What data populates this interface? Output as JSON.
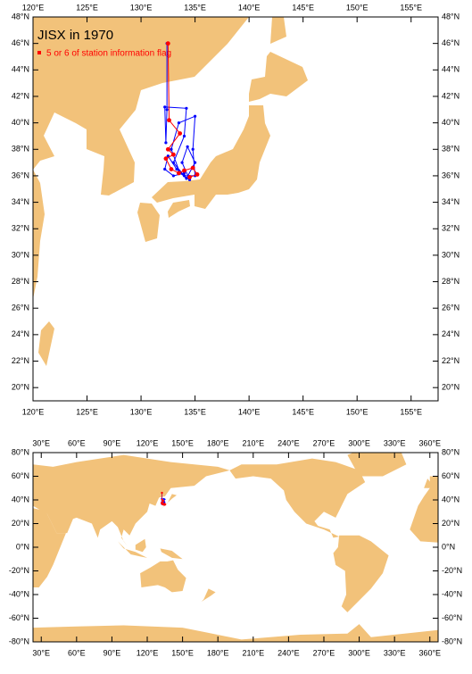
{
  "chart_data": [
    {
      "type": "map",
      "title": "JISX in 1970",
      "xlim": [
        120,
        157.5
      ],
      "ylim": [
        19,
        48
      ],
      "xticks": [
        {
          "value": 120,
          "label": "120°E"
        },
        {
          "value": 125,
          "label": "125°E"
        },
        {
          "value": 130,
          "label": "130°E"
        },
        {
          "value": 135,
          "label": "135°E"
        },
        {
          "value": 140,
          "label": "140°E"
        },
        {
          "value": 145,
          "label": "145°E"
        },
        {
          "value": 150,
          "label": "150°E"
        },
        {
          "value": 155,
          "label": "155°E"
        }
      ],
      "yticks": [
        {
          "value": 20,
          "label": "20°N"
        },
        {
          "value": 22,
          "label": "22°N"
        },
        {
          "value": 24,
          "label": "24°N"
        },
        {
          "value": 26,
          "label": "26°N"
        },
        {
          "value": 28,
          "label": "28°N"
        },
        {
          "value": 30,
          "label": "30°N"
        },
        {
          "value": 32,
          "label": "32°N"
        },
        {
          "value": 34,
          "label": "34°N"
        },
        {
          "value": 36,
          "label": "36°N"
        },
        {
          "value": 38,
          "label": "38°N"
        },
        {
          "value": 40,
          "label": "40°N"
        },
        {
          "value": 42,
          "label": "42°N"
        },
        {
          "value": 44,
          "label": "44°N"
        },
        {
          "value": 46,
          "label": "46°N"
        },
        {
          "value": 48,
          "label": "48°N"
        }
      ],
      "series": [
        {
          "color": "#0000ff",
          "x": [
            132.4,
            132.4,
            132.3,
            132.2,
            134.2,
            134,
            133,
            134,
            135,
            134.8,
            135,
            133.5,
            132.8,
            133.6,
            134.5,
            133.8,
            134.3,
            135,
            134.2,
            133.3,
            132.5,
            132.2,
            133,
            134
          ],
          "values": [
            46,
            41,
            38.5,
            41.2,
            41.1,
            39,
            37,
            36,
            36,
            38,
            40.5,
            40,
            38,
            36.2,
            35.7,
            37,
            38.2,
            37,
            35.8,
            36.5,
            37.5,
            36.5,
            36,
            36.2
          ]
        },
        {
          "name": "5 or 6 of station information flag",
          "color": "#ff0000",
          "x": [
            132.5,
            132.6,
            133.6,
            132.5,
            133,
            132.3,
            132.8,
            133.5,
            134,
            134.8,
            135.2,
            134.5
          ],
          "values": [
            46,
            40.2,
            39.2,
            38,
            37.6,
            37.3,
            36.5,
            36.2,
            36.4,
            36.6,
            36.1,
            35.9
          ]
        }
      ]
    },
    {
      "type": "map",
      "xlim": [
        23,
        367
      ],
      "ylim": [
        -80,
        80
      ],
      "xticks": [
        {
          "value": 30,
          "label": "30°E"
        },
        {
          "value": 60,
          "label": "60°E"
        },
        {
          "value": 90,
          "label": "90°E"
        },
        {
          "value": 120,
          "label": "120°E"
        },
        {
          "value": 150,
          "label": "150°E"
        },
        {
          "value": 180,
          "label": "180°E"
        },
        {
          "value": 210,
          "label": "210°E"
        },
        {
          "value": 240,
          "label": "240°E"
        },
        {
          "value": 270,
          "label": "270°E"
        },
        {
          "value": 300,
          "label": "300°E"
        },
        {
          "value": 330,
          "label": "330°E"
        },
        {
          "value": 360,
          "label": "360°E"
        }
      ],
      "yticks": [
        {
          "value": -80,
          "label": "-80°N"
        },
        {
          "value": -60,
          "label": "-60°N"
        },
        {
          "value": -40,
          "label": "-40°N"
        },
        {
          "value": -20,
          "label": "-20°N"
        },
        {
          "value": 0,
          "label": "0°N"
        },
        {
          "value": 20,
          "label": "20°N"
        },
        {
          "value": 40,
          "label": "40°N"
        },
        {
          "value": 60,
          "label": "60°N"
        },
        {
          "value": 80,
          "label": "80°N"
        }
      ],
      "series": [
        {
          "color": "#0000ff",
          "x": [
            132.4,
            132.4,
            132.3,
            132.2,
            134.2,
            134,
            133,
            134,
            135,
            134.8,
            135,
            133.5,
            132.8,
            133.6,
            134.5,
            133.8,
            134.3,
            135,
            134.2,
            133.3,
            132.5,
            132.2,
            133,
            134
          ],
          "values": [
            46,
            41,
            38.5,
            41.2,
            41.1,
            39,
            37,
            36,
            36,
            38,
            40.5,
            40,
            38,
            36.2,
            35.7,
            37,
            38.2,
            37,
            35.8,
            36.5,
            37.5,
            36.5,
            36,
            36.2
          ]
        },
        {
          "color": "#ff0000",
          "x": [
            132.5,
            132.6,
            133.6,
            132.5,
            133,
            132.3,
            132.8,
            133.5,
            134,
            134.8,
            135.2,
            134.5
          ],
          "values": [
            46,
            40.2,
            39.2,
            38,
            37.6,
            37.3,
            36.5,
            36.2,
            36.4,
            36.6,
            36.1,
            35.9
          ]
        }
      ]
    }
  ]
}
